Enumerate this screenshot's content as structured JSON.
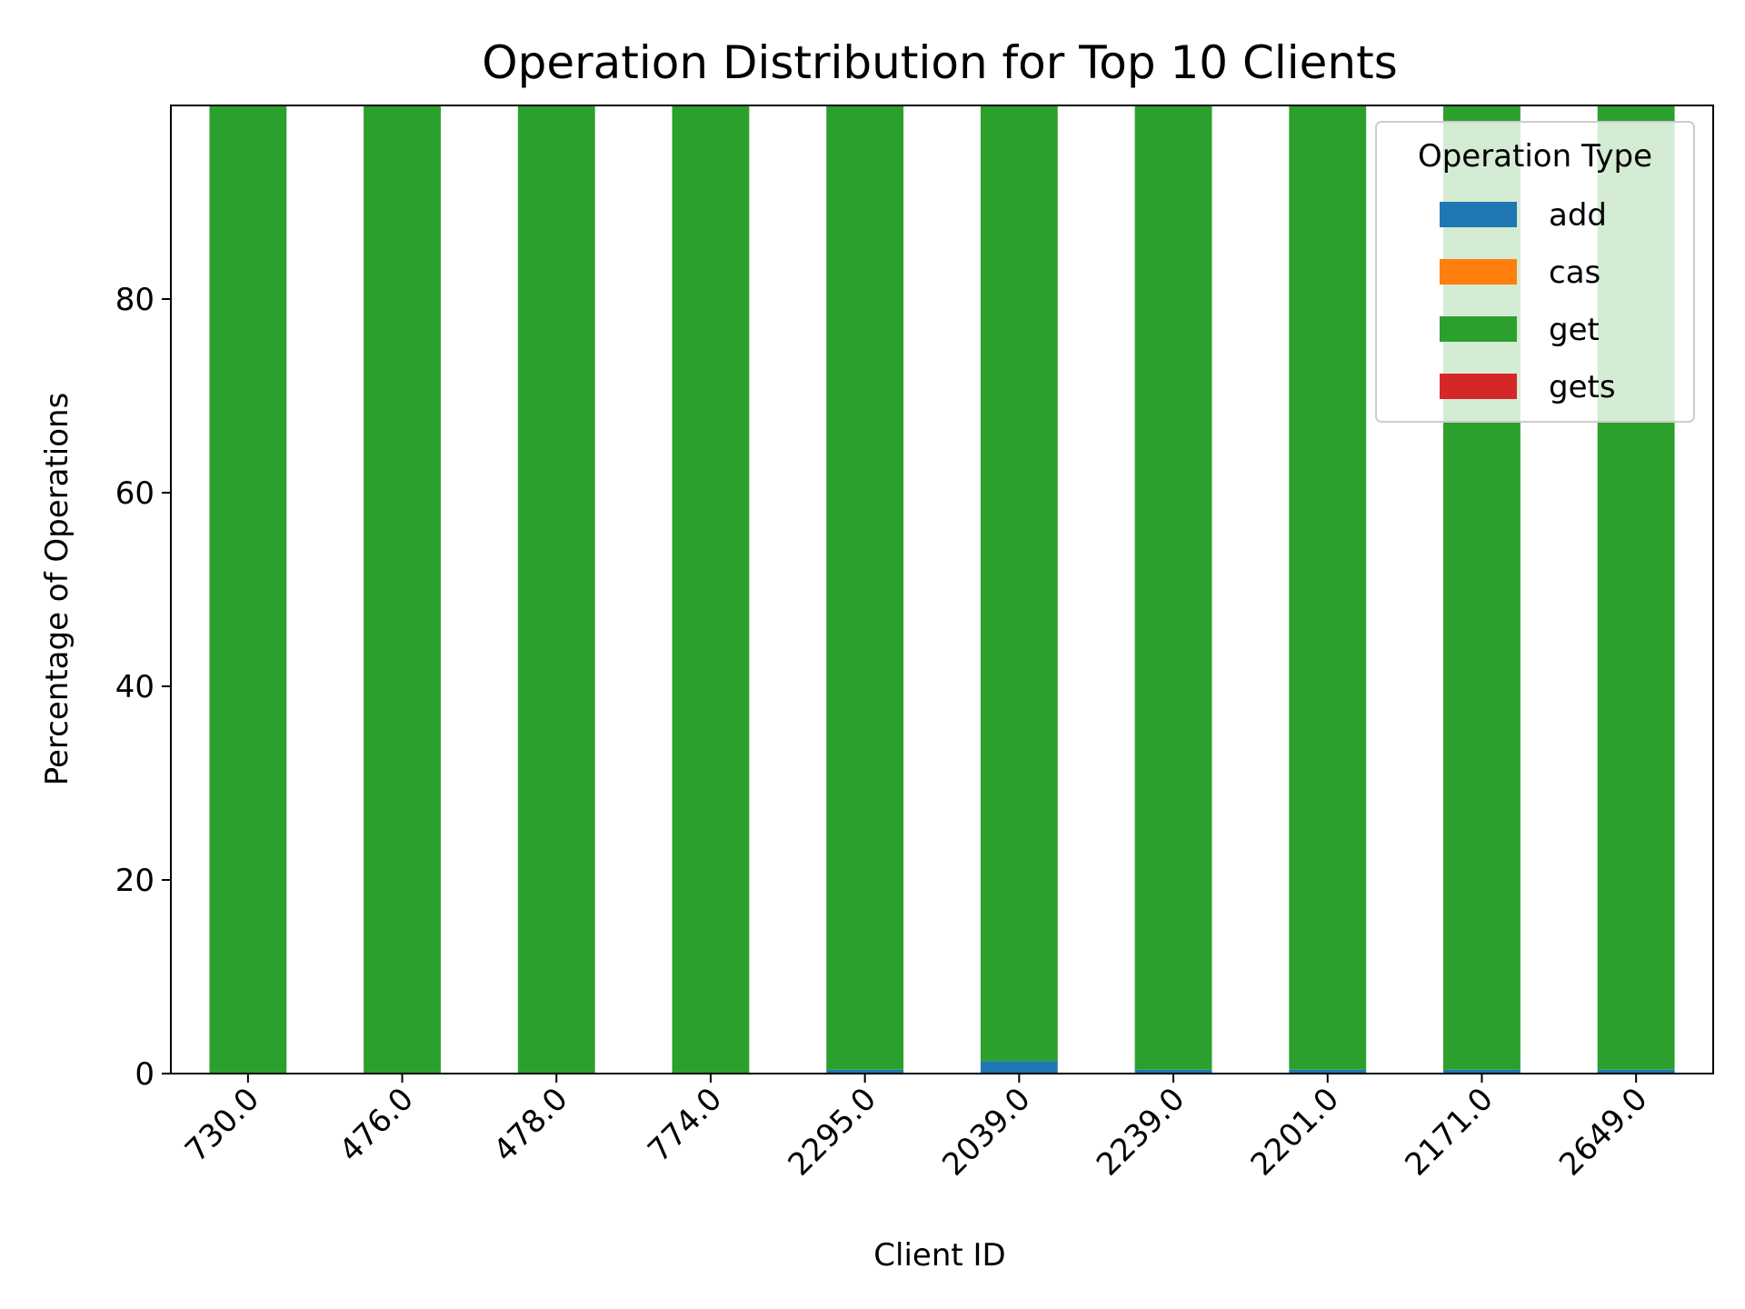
{
  "chart_data": {
    "type": "bar",
    "stacked": true,
    "title": "Operation Distribution for Top 10 Clients",
    "xlabel": "Client ID",
    "ylabel": "Percentage of Operations",
    "categories": [
      "730.0",
      "476.0",
      "478.0",
      "774.0",
      "2295.0",
      "2039.0",
      "2239.0",
      "2201.0",
      "2171.0",
      "2649.0"
    ],
    "ylim": [
      0,
      100
    ],
    "yticks": [
      0,
      20,
      40,
      60,
      80
    ],
    "grid": false,
    "legend": {
      "title": "Operation Type",
      "position": "top-right"
    },
    "series": [
      {
        "name": "add",
        "color": "#1f77b4",
        "values": [
          0.0,
          0.0,
          0.0,
          0.0,
          0.4,
          1.3,
          0.4,
          0.4,
          0.4,
          0.4
        ]
      },
      {
        "name": "cas",
        "color": "#ff7f0e",
        "values": [
          0,
          0,
          0,
          0,
          0,
          0,
          0,
          0,
          0,
          0
        ]
      },
      {
        "name": "get",
        "color": "#2ca02c",
        "values": [
          100.0,
          100.0,
          100.0,
          100.0,
          99.6,
          98.7,
          99.6,
          99.6,
          99.6,
          99.6
        ]
      },
      {
        "name": "gets",
        "color": "#d62728",
        "values": [
          0,
          0,
          0,
          0,
          0,
          0,
          0,
          0,
          0,
          0
        ]
      }
    ]
  }
}
